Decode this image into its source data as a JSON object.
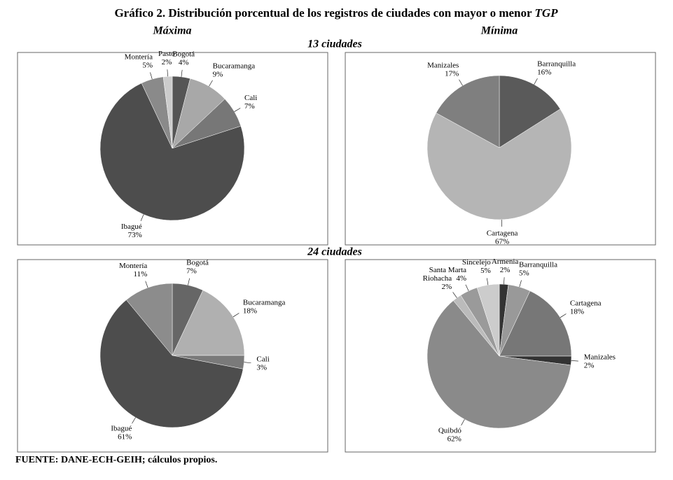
{
  "title": "Gráfico 2. Distribución porcentual de los registros de ciudades con mayor o menor",
  "title_italic": "TGP",
  "columns": [
    "Máxima",
    "Mínima"
  ],
  "rows": [
    "13 ciudades",
    "24 ciudades"
  ],
  "source": "FUENTE: DANE-ECH-GEIH; cálculos propios.",
  "chart_data": [
    {
      "type": "pie",
      "categories": [
        "Bogotá",
        "Bucaramanga",
        "Cali",
        "Ibagué",
        "Montería",
        "Pasto"
      ],
      "values": [
        4,
        9,
        7,
        73,
        5,
        2
      ],
      "value_labels": [
        "4%",
        "9%",
        "7%",
        "73%",
        "5%",
        "2%"
      ],
      "colors": [
        "#555555",
        "#a8a8a8",
        "#777777",
        "#4d4d4d",
        "#8a8a8a",
        "#cccccc"
      ]
    },
    {
      "type": "pie",
      "categories": [
        "Barranquilla",
        "Cartagena",
        "Manizales"
      ],
      "values": [
        16,
        67,
        17
      ],
      "value_labels": [
        "16%",
        "67%",
        "17%"
      ],
      "colors": [
        "#5a5a5a",
        "#b5b5b5",
        "#7f7f7f"
      ]
    },
    {
      "type": "pie",
      "categories": [
        "Bogotá",
        "Bucaramanga",
        "Cali",
        "Ibagué",
        "Montería"
      ],
      "values": [
        7,
        18,
        3,
        61,
        11
      ],
      "value_labels": [
        "7%",
        "18%",
        "3%",
        "61%",
        "11%"
      ],
      "colors": [
        "#666666",
        "#b0b0b0",
        "#7a7a7a",
        "#4d4d4d",
        "#8c8c8c"
      ]
    },
    {
      "type": "pie",
      "categories": [
        "Armenia",
        "Barranquilla",
        "Cartagena",
        "Manizales",
        "Quibdó",
        "Riohacha",
        "Santa Marta",
        "Sincelejo"
      ],
      "values": [
        2,
        5,
        18,
        2,
        62,
        2,
        4,
        5
      ],
      "value_labels": [
        "2%",
        "5%",
        "18%",
        "2%",
        "62%",
        "2%",
        "4%",
        "5%"
      ],
      "colors": [
        "#333333",
        "#999999",
        "#777777",
        "#333333",
        "#8a8a8a",
        "#bbbbbb",
        "#9a9a9a",
        "#cccccc"
      ]
    }
  ]
}
